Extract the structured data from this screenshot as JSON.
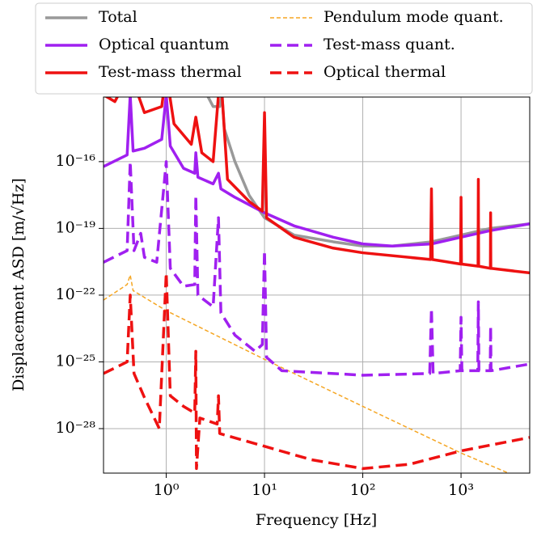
{
  "chart_data": {
    "type": "line",
    "xlabel": "Frequency [Hz]",
    "ylabel": "Displacement ASD [m/√Hz]",
    "xscale": "log",
    "yscale": "log",
    "grid": true,
    "legend": "top",
    "xlim": [
      0.23,
      5000
    ],
    "ylim": [
      1e-30,
      8e-14
    ],
    "xticks": [
      {
        "value": 1,
        "label": "10⁰"
      },
      {
        "value": 10,
        "label": "10¹"
      },
      {
        "value": 100,
        "label": "10²"
      },
      {
        "value": 1000,
        "label": "10³"
      }
    ],
    "yticks": [
      {
        "value": 1e-28,
        "label": "10⁻²⁸"
      },
      {
        "value": 1e-25,
        "label": "10⁻²⁵"
      },
      {
        "value": 1e-22,
        "label": "10⁻²²"
      },
      {
        "value": 1e-19,
        "label": "10⁻¹⁹"
      },
      {
        "value": 1e-16,
        "label": "10⁻¹⁶"
      }
    ],
    "series": [
      {
        "name": "Total",
        "color": "#999999",
        "linestyle": "solid",
        "x": [
          2.6,
          3.0,
          3.5,
          3.7,
          3.9,
          5,
          7,
          10,
          20,
          50,
          100,
          200,
          500,
          1000,
          2000,
          5000
        ],
        "values": [
          1e-13,
          3e-14,
          3e-14,
          1e-13,
          3e-15,
          1e-16,
          3e-18,
          3e-19,
          5e-20,
          2.5e-20,
          1.6e-20,
          1.6e-20,
          2.5e-20,
          5e-20,
          1e-19,
          1.6e-19
        ]
      },
      {
        "name": "Optical quantum",
        "color": "#a020f0",
        "linestyle": "solid",
        "x": [
          0.23,
          0.4,
          0.43,
          0.46,
          0.6,
          0.9,
          1.0,
          1.1,
          1.5,
          1.95,
          2.0,
          2.1,
          3.0,
          3.4,
          3.6,
          5,
          10,
          20,
          50,
          100,
          200,
          500,
          1000,
          2000,
          5000
        ],
        "values": [
          6e-17,
          2e-16,
          1e-13,
          3e-16,
          4e-16,
          1e-15,
          1e-13,
          5e-16,
          5e-17,
          3e-17,
          2.5e-16,
          2e-17,
          1e-17,
          3e-17,
          6e-18,
          2.5e-18,
          5e-19,
          1.3e-19,
          4e-20,
          2e-20,
          1.6e-20,
          2e-20,
          4e-20,
          8e-20,
          1.6e-19
        ]
      },
      {
        "name": "Test-mass thermal",
        "color": "#ee1111",
        "linestyle": "solid",
        "x": [
          0.23,
          0.3,
          0.43,
          0.6,
          0.9,
          1.0,
          1.2,
          1.8,
          2.0,
          2.3,
          3.0,
          3.4,
          3.7,
          4.2,
          7,
          9.5,
          10,
          10.5,
          20,
          50,
          100,
          490,
          500,
          510,
          990,
          1000,
          1010,
          1490,
          1500,
          1510,
          1990,
          2000,
          2010,
          5000
        ],
        "values": [
          1e-13,
          5e-14,
          1e-12,
          1.6e-14,
          3e-14,
          1e-12,
          5e-15,
          6e-16,
          1e-14,
          2.5e-16,
          1e-16,
          1e-13,
          1e-13,
          1.6e-17,
          1.6e-18,
          6e-19,
          1.6e-14,
          3e-19,
          4e-20,
          1.3e-20,
          8e-21,
          4e-21,
          6e-18,
          4e-21,
          2.5e-21,
          2.5e-18,
          2.5e-21,
          2e-21,
          1.6e-17,
          2e-21,
          1.6e-21,
          5e-19,
          1.6e-21,
          1e-21
        ]
      },
      {
        "name": "Pendulum mode quant.",
        "color": "#f5a623",
        "linestyle": "thin-dashed",
        "x": [
          0.23,
          0.4,
          0.43,
          0.46,
          1,
          10,
          100,
          1000,
          4000
        ],
        "values": [
          6e-23,
          3e-22,
          8e-22,
          1.6e-22,
          2e-23,
          1.3e-25,
          1e-27,
          8e-30,
          6e-31
        ]
      },
      {
        "name": "Test-mass quant.",
        "color": "#a020f0",
        "linestyle": "dashed",
        "x": [
          0.23,
          0.4,
          0.43,
          0.47,
          0.55,
          0.6,
          0.8,
          1.0,
          1.1,
          1.5,
          1.95,
          2.0,
          2.1,
          3.0,
          3.4,
          3.6,
          5,
          8,
          9.5,
          10,
          10.5,
          15,
          50,
          100,
          480,
          500,
          520,
          980,
          1000,
          1020,
          1480,
          1500,
          1520,
          1980,
          2000,
          2020,
          5000
        ],
        "values": [
          3e-21,
          1e-20,
          1e-16,
          1e-20,
          6e-20,
          5e-21,
          3e-21,
          1e-16,
          1.6e-21,
          2.5e-22,
          3e-22,
          3e-18,
          1e-22,
          3e-23,
          3e-19,
          1.6e-23,
          1.6e-24,
          3e-25,
          6e-25,
          1e-20,
          1.6e-25,
          4e-26,
          3e-26,
          2.5e-26,
          3e-26,
          2.5e-23,
          3e-26,
          4e-26,
          1e-23,
          4e-26,
          4e-26,
          5e-23,
          4e-26,
          4e-26,
          4e-24,
          4e-26,
          8e-26
        ]
      },
      {
        "name": "Optical thermal",
        "color": "#ee1111",
        "linestyle": "dashed",
        "x": [
          0.23,
          0.4,
          0.43,
          0.47,
          0.6,
          0.85,
          1.0,
          1.1,
          1.5,
          1.95,
          2.0,
          2.03,
          2.2,
          3.3,
          3.4,
          3.5,
          10,
          30,
          100,
          300,
          1000,
          5000
        ],
        "values": [
          3e-26,
          1e-25,
          1e-22,
          3e-26,
          2.5e-27,
          1e-28,
          1e-21,
          3e-27,
          1e-27,
          5e-28,
          3e-25,
          1.6e-30,
          3e-28,
          1.6e-28,
          3e-27,
          6e-29,
          1.6e-29,
          4e-30,
          1.6e-30,
          2.5e-30,
          1e-29,
          4e-29
        ]
      }
    ]
  }
}
